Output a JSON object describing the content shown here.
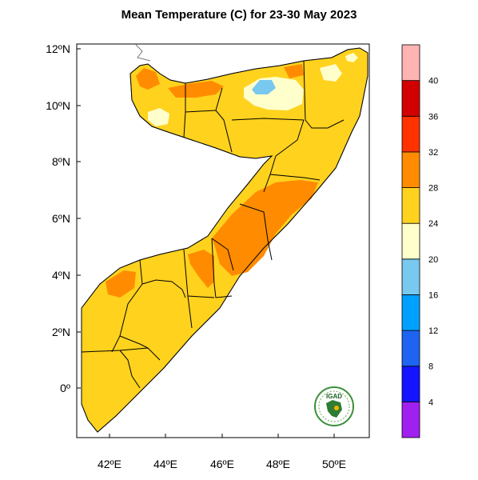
{
  "map": {
    "title": "Mean Temperature (C) for 23-30 May 2023",
    "lat_ticks": [
      "12ºN",
      "10ºN",
      "8ºN",
      "6ºN",
      "4ºN",
      "2ºN",
      "0º"
    ],
    "lon_ticks": [
      "42ºE",
      "44ºE",
      "46ºE",
      "48ºE",
      "50ºE"
    ],
    "logo_text": "IGAD"
  },
  "legend": {
    "bins": [
      {
        "color": "#a020f0"
      },
      {
        "color": "#1414ff"
      },
      {
        "color": "#1e64f0"
      },
      {
        "color": "#00a0ff"
      },
      {
        "color": "#78c8f0"
      },
      {
        "color": "#ffffcc"
      },
      {
        "color": "#ffd21e"
      },
      {
        "color": "#ff8c00"
      },
      {
        "color": "#ff3200"
      },
      {
        "color": "#d20000"
      },
      {
        "color": "#ffb4b4"
      }
    ],
    "labels": [
      "4",
      "8",
      "12",
      "16",
      "20",
      "24",
      "28",
      "32",
      "36",
      "40"
    ]
  }
}
